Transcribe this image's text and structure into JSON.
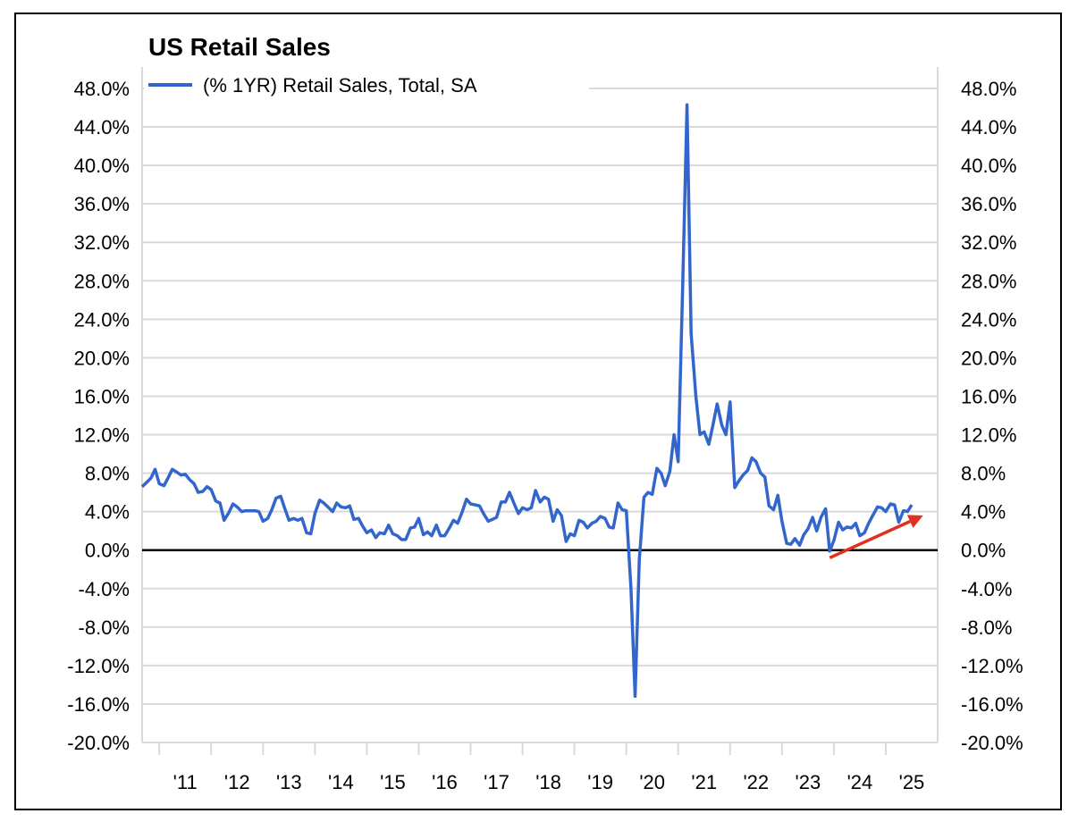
{
  "chart_data": {
    "type": "line",
    "title": "US Retail Sales",
    "legend": [
      "(% 1YR) Retail Sales, Total, SA"
    ],
    "legend_position": "top-left",
    "xlabel": "",
    "ylabel": "",
    "ylim": [
      -20,
      48
    ],
    "y_ticks": [
      "48.0%",
      "44.0%",
      "40.0%",
      "36.0%",
      "32.0%",
      "28.0%",
      "24.0%",
      "20.0%",
      "16.0%",
      "12.0%",
      "8.0%",
      "4.0%",
      "0.0%",
      "-4.0%",
      "-8.0%",
      "-12.0%",
      "-16.0%",
      "-20.0%"
    ],
    "x_ticks": [
      "'11",
      "'12",
      "'13",
      "'14",
      "'15",
      "'16",
      "'17",
      "'18",
      "'19",
      "'20",
      "'21",
      "'22",
      "'23",
      "'24",
      "'25"
    ],
    "grid": true,
    "colors": {
      "series": "#3366cc",
      "zero_line": "#000000",
      "grid": "#d9d9d9",
      "arrow": "#e03020"
    },
    "series": [
      {
        "name": "(% 1YR) Retail Sales, Total, SA",
        "points": [
          [
            2010.5,
            6.6
          ],
          [
            2010.58,
            7.0
          ],
          [
            2010.67,
            7.5
          ],
          [
            2010.75,
            8.4
          ],
          [
            2010.83,
            6.9
          ],
          [
            2010.92,
            6.7
          ],
          [
            2011.0,
            7.5
          ],
          [
            2011.08,
            8.4
          ],
          [
            2011.17,
            8.1
          ],
          [
            2011.25,
            7.8
          ],
          [
            2011.33,
            7.9
          ],
          [
            2011.42,
            7.3
          ],
          [
            2011.5,
            6.9
          ],
          [
            2011.58,
            6.0
          ],
          [
            2011.67,
            6.1
          ],
          [
            2011.75,
            6.6
          ],
          [
            2011.83,
            6.3
          ],
          [
            2011.92,
            5.1
          ],
          [
            2012.0,
            4.9
          ],
          [
            2012.08,
            3.1
          ],
          [
            2012.17,
            3.9
          ],
          [
            2012.25,
            4.8
          ],
          [
            2012.33,
            4.5
          ],
          [
            2012.42,
            4.0
          ],
          [
            2012.5,
            4.1
          ],
          [
            2012.58,
            4.1
          ],
          [
            2012.67,
            4.1
          ],
          [
            2012.75,
            4.0
          ],
          [
            2012.83,
            3.0
          ],
          [
            2012.92,
            3.3
          ],
          [
            2013.0,
            4.2
          ],
          [
            2013.08,
            5.4
          ],
          [
            2013.17,
            5.6
          ],
          [
            2013.25,
            4.3
          ],
          [
            2013.33,
            3.1
          ],
          [
            2013.42,
            3.3
          ],
          [
            2013.5,
            3.1
          ],
          [
            2013.58,
            3.3
          ],
          [
            2013.67,
            1.8
          ],
          [
            2013.75,
            1.7
          ],
          [
            2013.83,
            3.8
          ],
          [
            2013.92,
            5.2
          ],
          [
            2014.0,
            4.9
          ],
          [
            2014.08,
            4.5
          ],
          [
            2014.17,
            4.0
          ],
          [
            2014.25,
            4.9
          ],
          [
            2014.33,
            4.5
          ],
          [
            2014.42,
            4.4
          ],
          [
            2014.5,
            4.6
          ],
          [
            2014.58,
            3.2
          ],
          [
            2014.67,
            3.3
          ],
          [
            2014.75,
            2.5
          ],
          [
            2014.83,
            1.8
          ],
          [
            2014.92,
            2.1
          ],
          [
            2015.0,
            1.3
          ],
          [
            2015.08,
            1.8
          ],
          [
            2015.17,
            1.7
          ],
          [
            2015.25,
            2.6
          ],
          [
            2015.33,
            1.7
          ],
          [
            2015.42,
            1.5
          ],
          [
            2015.5,
            1.1
          ],
          [
            2015.58,
            1.1
          ],
          [
            2015.67,
            2.3
          ],
          [
            2015.75,
            2.4
          ],
          [
            2015.83,
            3.3
          ],
          [
            2015.92,
            1.6
          ],
          [
            2016.0,
            1.9
          ],
          [
            2016.08,
            1.5
          ],
          [
            2016.17,
            2.6
          ],
          [
            2016.25,
            1.5
          ],
          [
            2016.33,
            1.5
          ],
          [
            2016.42,
            2.3
          ],
          [
            2016.5,
            3.1
          ],
          [
            2016.58,
            2.8
          ],
          [
            2016.67,
            4.0
          ],
          [
            2016.75,
            5.3
          ],
          [
            2016.83,
            4.8
          ],
          [
            2016.92,
            4.7
          ],
          [
            2017.0,
            4.6
          ],
          [
            2017.08,
            3.8
          ],
          [
            2017.17,
            3.0
          ],
          [
            2017.25,
            3.2
          ],
          [
            2017.33,
            3.4
          ],
          [
            2017.42,
            5.0
          ],
          [
            2017.5,
            5.0
          ],
          [
            2017.58,
            6.0
          ],
          [
            2017.67,
            4.8
          ],
          [
            2017.75,
            3.8
          ],
          [
            2017.83,
            4.4
          ],
          [
            2017.92,
            4.2
          ],
          [
            2018.0,
            4.4
          ],
          [
            2018.08,
            6.2
          ],
          [
            2018.17,
            5.0
          ],
          [
            2018.25,
            5.5
          ],
          [
            2018.33,
            5.3
          ],
          [
            2018.42,
            3.0
          ],
          [
            2018.5,
            4.2
          ],
          [
            2018.58,
            3.6
          ],
          [
            2018.67,
            0.9
          ],
          [
            2018.75,
            1.7
          ],
          [
            2018.83,
            1.5
          ],
          [
            2018.92,
            3.1
          ],
          [
            2019.0,
            2.9
          ],
          [
            2019.08,
            2.3
          ],
          [
            2019.17,
            2.8
          ],
          [
            2019.25,
            3.0
          ],
          [
            2019.33,
            3.5
          ],
          [
            2019.42,
            3.3
          ],
          [
            2019.5,
            2.4
          ],
          [
            2019.58,
            2.3
          ],
          [
            2019.67,
            4.9
          ],
          [
            2019.75,
            4.2
          ],
          [
            2019.83,
            4.1
          ],
          [
            2019.92,
            -4.0
          ],
          [
            2020.0,
            -15.2
          ],
          [
            2020.08,
            -1.0
          ],
          [
            2020.17,
            5.5
          ],
          [
            2020.25,
            6.0
          ],
          [
            2020.33,
            5.8
          ],
          [
            2020.42,
            8.5
          ],
          [
            2020.5,
            8.0
          ],
          [
            2020.58,
            6.7
          ],
          [
            2020.67,
            8.2
          ],
          [
            2020.75,
            12.0
          ],
          [
            2020.83,
            9.2
          ],
          [
            2020.92,
            28.0
          ],
          [
            2021.0,
            46.3
          ],
          [
            2021.08,
            22.5
          ],
          [
            2021.17,
            16.0
          ],
          [
            2021.25,
            12.0
          ],
          [
            2021.33,
            12.3
          ],
          [
            2021.42,
            11.0
          ],
          [
            2021.5,
            13.0
          ],
          [
            2021.58,
            15.2
          ],
          [
            2021.67,
            13.0
          ],
          [
            2021.75,
            12.0
          ],
          [
            2021.83,
            15.4
          ],
          [
            2021.92,
            6.5
          ],
          [
            2022.0,
            7.2
          ],
          [
            2022.08,
            7.8
          ],
          [
            2022.17,
            8.3
          ],
          [
            2022.25,
            9.6
          ],
          [
            2022.33,
            9.2
          ],
          [
            2022.42,
            8.0
          ],
          [
            2022.5,
            7.6
          ],
          [
            2022.58,
            4.6
          ],
          [
            2022.67,
            4.2
          ],
          [
            2022.75,
            5.7
          ],
          [
            2022.83,
            3.0
          ],
          [
            2022.92,
            0.7
          ],
          [
            2023.0,
            0.6
          ],
          [
            2023.08,
            1.2
          ],
          [
            2023.17,
            0.5
          ],
          [
            2023.25,
            1.6
          ],
          [
            2023.33,
            2.2
          ],
          [
            2023.42,
            3.4
          ],
          [
            2023.5,
            2.0
          ],
          [
            2023.58,
            3.4
          ],
          [
            2023.67,
            4.3
          ],
          [
            2023.75,
            -0.1
          ],
          [
            2023.83,
            1.0
          ],
          [
            2023.92,
            2.9
          ],
          [
            2024.0,
            2.1
          ],
          [
            2024.08,
            2.4
          ],
          [
            2024.17,
            2.3
          ],
          [
            2024.25,
            2.8
          ],
          [
            2024.33,
            1.5
          ],
          [
            2024.42,
            1.8
          ],
          [
            2024.5,
            2.8
          ],
          [
            2024.58,
            3.6
          ],
          [
            2024.67,
            4.5
          ],
          [
            2024.75,
            4.4
          ],
          [
            2024.83,
            4.0
          ],
          [
            2024.92,
            4.8
          ],
          [
            2025.0,
            4.7
          ],
          [
            2025.08,
            2.9
          ],
          [
            2025.17,
            4.1
          ],
          [
            2025.25,
            4.0
          ],
          [
            2025.33,
            4.7
          ]
        ]
      }
    ],
    "annotations": [
      {
        "type": "arrow",
        "from": [
          2023.75,
          -0.8
        ],
        "to": [
          2025.55,
          3.6
        ],
        "description": "upward trend arrow"
      }
    ]
  }
}
